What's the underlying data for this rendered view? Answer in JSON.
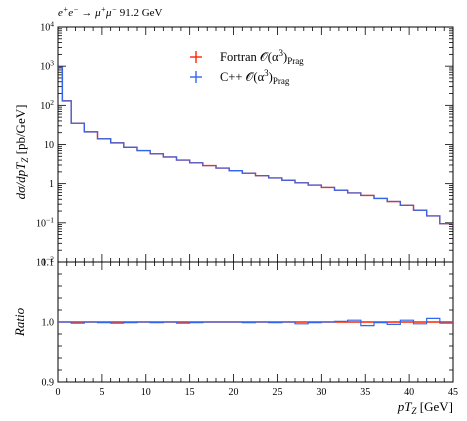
{
  "chart_data": [
    {
      "type": "line",
      "panel": "main",
      "title": "e+e- → μ+μ- 91.2 GeV",
      "ylabel": "dσ/dpT_Z [pb/GeV]",
      "yscale": "log",
      "ylim": [
        0.01,
        10000
      ],
      "xlim": [
        0,
        45
      ],
      "y_tick_labels": [
        "10^-2",
        "10^-1",
        "1",
        "10",
        "10^2",
        "10^3",
        "10^4"
      ],
      "bin_edges": [
        0,
        0.5,
        1.5,
        3,
        4.5,
        6,
        7.5,
        9,
        10.5,
        12,
        13.5,
        15,
        16.5,
        18,
        19.5,
        21,
        22.5,
        24,
        25.5,
        27,
        28.5,
        30,
        31.5,
        33,
        34.5,
        36,
        37.5,
        39,
        40.5,
        42,
        43.5,
        45
      ],
      "series": [
        {
          "name": "Fortran O(α³)Prag",
          "color": "#ff2200",
          "values": [
            950,
            130,
            35,
            21,
            14,
            11,
            8.5,
            7,
            5.8,
            4.8,
            4.0,
            3.4,
            2.9,
            2.5,
            2.15,
            1.85,
            1.6,
            1.4,
            1.22,
            1.05,
            0.92,
            0.8,
            0.68,
            0.58,
            0.5,
            0.42,
            0.35,
            0.28,
            0.21,
            0.15,
            0.095
          ]
        },
        {
          "name": "C++ O(α³)Prag",
          "color": "#3366ee",
          "values": [
            950,
            130,
            35,
            21,
            14,
            11,
            8.5,
            7,
            5.8,
            4.8,
            4.0,
            3.4,
            2.9,
            2.5,
            2.15,
            1.85,
            1.6,
            1.4,
            1.22,
            1.05,
            0.92,
            0.8,
            0.68,
            0.58,
            0.5,
            0.42,
            0.35,
            0.28,
            0.21,
            0.15,
            0.095
          ]
        }
      ],
      "legend": "top-center",
      "grid": false
    },
    {
      "type": "line",
      "panel": "ratio",
      "ylabel": "Ratio",
      "xlabel": "pT_Z [GeV]",
      "ylim": [
        0.9,
        1.1
      ],
      "xlim": [
        0,
        45
      ],
      "x_ticks": [
        0,
        5,
        10,
        15,
        20,
        25,
        30,
        35,
        40,
        45
      ],
      "y_ticks": [
        0.9,
        1.0,
        1.1
      ],
      "y_tick_labels": [
        "0.9",
        "1.0",
        "1.1"
      ],
      "bin_edges": [
        0,
        1.5,
        3,
        4.5,
        6,
        7.5,
        9,
        10.5,
        12,
        13.5,
        15,
        16.5,
        18,
        19.5,
        21,
        22.5,
        24,
        25.5,
        27,
        28.5,
        30,
        31.5,
        33,
        34.5,
        36,
        37.5,
        39,
        40.5,
        42,
        43.5,
        45
      ],
      "series": [
        {
          "name": "Fortran O(α³)Prag",
          "color": "#ff2200",
          "values": [
            1.0,
            1.0,
            1.0,
            1.0,
            1.0,
            1.0,
            1.0,
            1.0,
            1.0,
            1.0,
            1.0,
            1.0,
            1.0,
            1.0,
            1.0,
            1.0,
            1.0,
            1.0,
            1.0,
            1.0,
            1.0,
            1.0,
            1.0,
            1.0,
            1.0,
            1.0,
            1.0,
            1.0,
            1.0,
            1.0
          ]
        },
        {
          "name": "C++ O(α³)Prag",
          "color": "#3366ee",
          "values": [
            1.0,
            0.998,
            1.0,
            0.999,
            0.998,
            0.999,
            1.0,
            0.999,
            1.0,
            0.998,
            0.999,
            1.0,
            1.0,
            1.0,
            0.999,
            1.0,
            0.999,
            1.0,
            0.997,
            0.999,
            1.0,
            1.001,
            1.003,
            0.994,
            0.999,
            0.996,
            1.003,
            0.997,
            1.006,
            0.998
          ]
        }
      ]
    }
  ]
}
